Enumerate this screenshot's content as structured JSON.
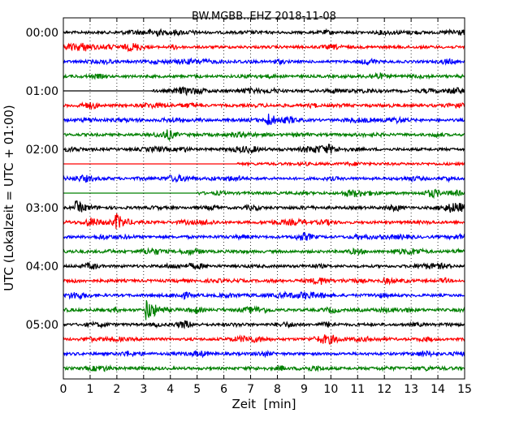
{
  "chart_data": {
    "type": "line",
    "title": "BW.MGBB..EHZ 2018-11-08",
    "xlabel": "Zeit  [min]",
    "ylabel": "UTC (Lokalzeit = UTC + 01:00)",
    "xlim": [
      0,
      15
    ],
    "x_ticks": [
      "0",
      "1",
      "2",
      "3",
      "4",
      "5",
      "6",
      "7",
      "8",
      "9",
      "10",
      "11",
      "12",
      "13",
      "14",
      "15"
    ],
    "y_ticks": [
      "00:00",
      "01:00",
      "02:00",
      "03:00",
      "04:00",
      "05:00"
    ],
    "grid": "vertical dotted at each minute",
    "trace_colors": [
      "#000000",
      "#ff0000",
      "#0000ff",
      "#008000"
    ],
    "trace_interval_minutes": 15,
    "trace_start_times": [
      "00:00",
      "00:15",
      "00:30",
      "00:45",
      "01:00",
      "01:15",
      "01:30",
      "01:45",
      "02:00",
      "02:15",
      "02:30",
      "02:45",
      "03:00",
      "03:15",
      "03:30",
      "03:45",
      "04:00",
      "04:15",
      "04:30",
      "04:45",
      "05:00",
      "05:15",
      "05:30",
      "05:45"
    ],
    "trace_data_start_minutes": [
      0,
      0,
      0,
      0,
      3.3,
      0,
      0,
      0,
      0,
      6.5,
      0,
      5,
      0,
      0,
      0,
      0,
      0,
      0,
      0,
      0,
      0,
      0,
      0,
      0
    ],
    "events": [
      {
        "trace": "01:30",
        "minute": 7.6,
        "relative_amplitude": 0.6
      },
      {
        "trace": "03:00",
        "minute": 0.5,
        "relative_amplitude": 0.5
      },
      {
        "trace": "03:15",
        "minute": 2.0,
        "relative_amplitude": 0.6
      },
      {
        "trace": "04:45",
        "minute": 3.1,
        "relative_amplitude": 1.0
      }
    ]
  }
}
